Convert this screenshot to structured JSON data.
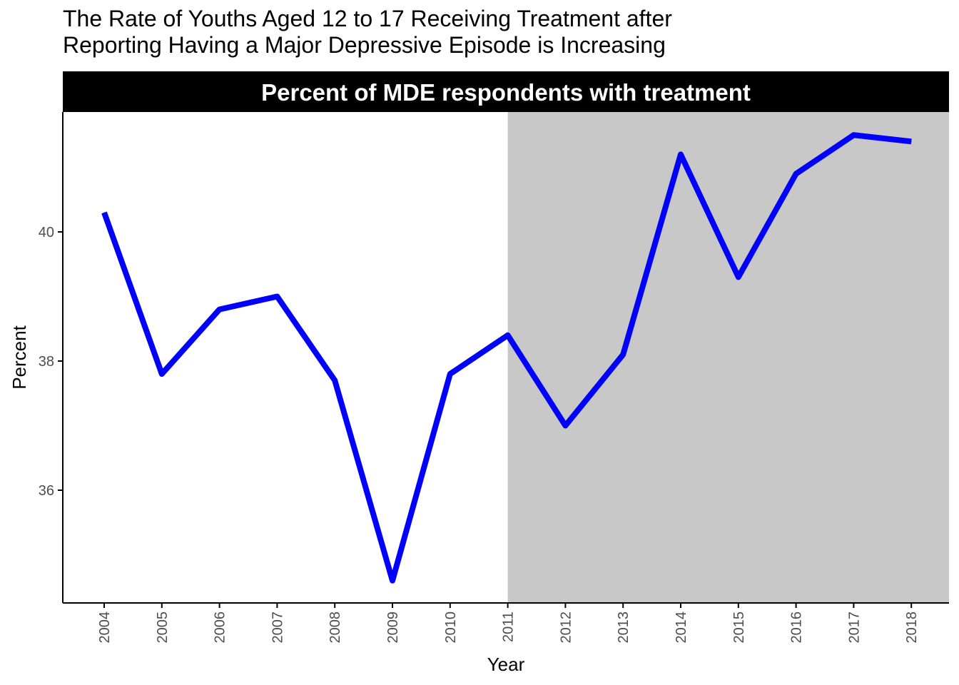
{
  "chart_data": {
    "type": "line",
    "title": "The Rate of Youths Aged 12 to 17 Receiving Treatment after",
    "subtitle": "Reporting Having a Major Depressive Episode is Increasing",
    "panel_label": "Percent of MDE respondents with treatment",
    "xlabel": "Year",
    "ylabel": "Percent",
    "x": [
      "2004",
      "2005",
      "2006",
      "2007",
      "2008",
      "2009",
      "2010",
      "2011",
      "2012",
      "2013",
      "2014",
      "2015",
      "2016",
      "2017",
      "2018"
    ],
    "series": [
      {
        "values": [
          40.3,
          37.8,
          38.8,
          39.0,
          37.7,
          34.6,
          37.8,
          38.4,
          37.0,
          38.1,
          41.2,
          39.3,
          40.9,
          41.5,
          41.4
        ]
      }
    ],
    "y_ticks": [
      "36",
      "38",
      "40"
    ],
    "ylim": [
      34.2,
      41.85
    ],
    "shaded_region": {
      "from": "2011",
      "to": "2018"
    },
    "grid": false,
    "colors": {
      "line": "#0000ff",
      "shade": "#c8c8c8",
      "strip_bg": "#000000",
      "strip_text": "#ffffff"
    }
  }
}
